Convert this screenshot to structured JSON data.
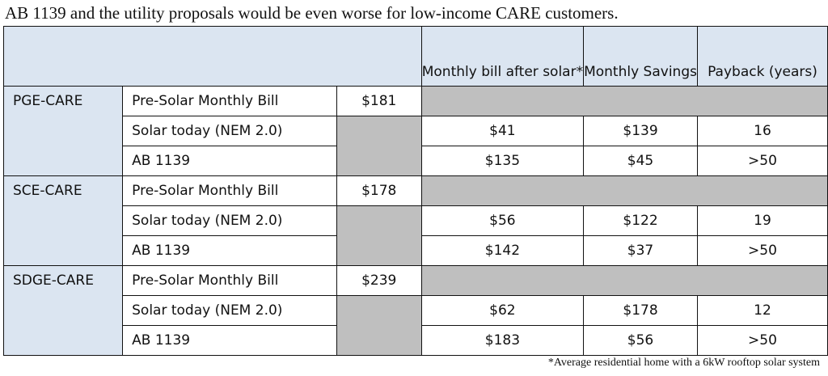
{
  "caption": "AB 1139 and the utility proposals would be even worse for low-income CARE customers.",
  "headers": {
    "bill_after": "Monthly bill after solar*",
    "savings": "Monthly Savings",
    "payback": "Payback (years)"
  },
  "groups": [
    {
      "utility": "PGE-CARE",
      "pre_label": "Pre-Solar Monthly Bill",
      "pre_bill": "$181",
      "rows": [
        {
          "scenario": "Solar today (NEM 2.0)",
          "bill_after": "$41",
          "savings": "$139",
          "payback": "16"
        },
        {
          "scenario": "AB 1139",
          "bill_after": "$135",
          "savings": "$45",
          "payback": ">50"
        }
      ]
    },
    {
      "utility": "SCE-CARE",
      "pre_label": "Pre-Solar Monthly Bill",
      "pre_bill": "$178",
      "rows": [
        {
          "scenario": "Solar today (NEM 2.0)",
          "bill_after": "$56",
          "savings": "$122",
          "payback": "19"
        },
        {
          "scenario": "AB 1139",
          "bill_after": "$142",
          "savings": "$37",
          "payback": ">50"
        }
      ]
    },
    {
      "utility": "SDGE-CARE",
      "pre_label": "Pre-Solar Monthly Bill",
      "pre_bill": "$239",
      "rows": [
        {
          "scenario": "Solar today (NEM 2.0)",
          "bill_after": "$62",
          "savings": "$178",
          "payback": "12"
        },
        {
          "scenario": "AB 1139",
          "bill_after": "$183",
          "savings": "$56",
          "payback": ">50"
        }
      ]
    }
  ],
  "footnote": "*Average residential home with a 6kW rooftop solar system",
  "colors": {
    "header_fill": "#dbe5f1",
    "gray_fill": "#bfbfbf",
    "border": "#111111"
  }
}
